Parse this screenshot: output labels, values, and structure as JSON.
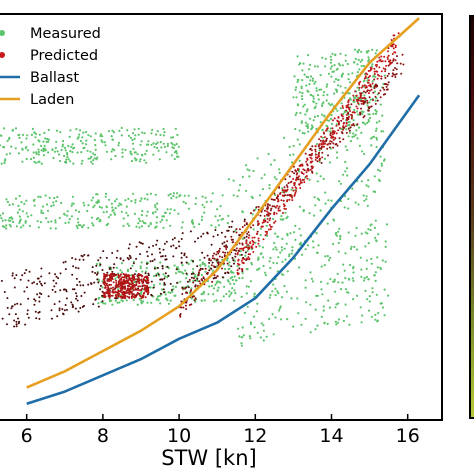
{
  "chart_data": {
    "type": "scatter",
    "xlabel": "STW [kn]",
    "xticks": [
      6,
      8,
      10,
      12,
      14,
      16
    ],
    "xlim": [
      5.3,
      16.9
    ],
    "ylim": [
      0,
      1
    ],
    "legend": {
      "placement": "top-left",
      "entries": [
        "Measured",
        "Predicted",
        "Ballast",
        "Laden"
      ]
    },
    "colorbar": {
      "placement": "right",
      "tick_labels": []
    },
    "series": [
      {
        "name": "Measured",
        "kind": "scatter",
        "color": "#5cc46b",
        "clusters": [
          {
            "x": [
              5.3,
              10.0
            ],
            "y": [
              0.63,
              0.72
            ],
            "trend": 0.015
          },
          {
            "x": [
              5.3,
              11.3
            ],
            "y": [
              0.47,
              0.56
            ],
            "trend": 0.05
          },
          {
            "x": [
              11.3,
              15.4
            ],
            "y": [
              0.3,
              0.86
            ],
            "trend": 0.45
          },
          {
            "x": [
              11.5,
              15.5
            ],
            "y": [
              0.18,
              0.5
            ],
            "trend": 0.2
          },
          {
            "x": [
              13.0,
              15.2
            ],
            "y": [
              0.7,
              0.92
            ],
            "trend": 0.1
          },
          {
            "x": [
              7.8,
              11.5
            ],
            "y": [
              0.28,
              0.4
            ],
            "trend": 0.1
          }
        ]
      },
      {
        "name": "Predicted",
        "kind": "scatter",
        "color": "#c81919",
        "clusters": [
          {
            "x": [
              5.3,
              11.8
            ],
            "y": [
              0.22,
              0.5
            ],
            "trend": 0.5,
            "color": "#4a0a0a"
          },
          {
            "x": [
              10.0,
              15.9
            ],
            "y": [
              0.25,
              0.92
            ],
            "trend": 0.9,
            "color": "#8b1010"
          },
          {
            "x": [
              11.5,
              15.8
            ],
            "y": [
              0.35,
              0.97
            ],
            "trend": 0.9,
            "color": "#c01818"
          },
          {
            "x": [
              8.0,
              9.2
            ],
            "y": [
              0.3,
              0.36
            ],
            "trend": 0.0,
            "color": "#b01515"
          }
        ]
      },
      {
        "name": "Ballast",
        "kind": "line",
        "color": "#1f6ea8",
        "x": [
          6,
          7,
          8,
          9,
          10,
          11,
          12,
          13,
          14,
          15,
          16.3
        ],
        "y": [
          0.04,
          0.07,
          0.11,
          0.15,
          0.2,
          0.24,
          0.3,
          0.4,
          0.52,
          0.63,
          0.8
        ]
      },
      {
        "name": "Laden",
        "kind": "line",
        "color": "#e5a021",
        "x": [
          6,
          7,
          8,
          9,
          10,
          11,
          12,
          13,
          14,
          15,
          16.3
        ],
        "y": [
          0.08,
          0.12,
          0.17,
          0.22,
          0.28,
          0.37,
          0.5,
          0.63,
          0.76,
          0.88,
          0.99
        ]
      }
    ]
  }
}
